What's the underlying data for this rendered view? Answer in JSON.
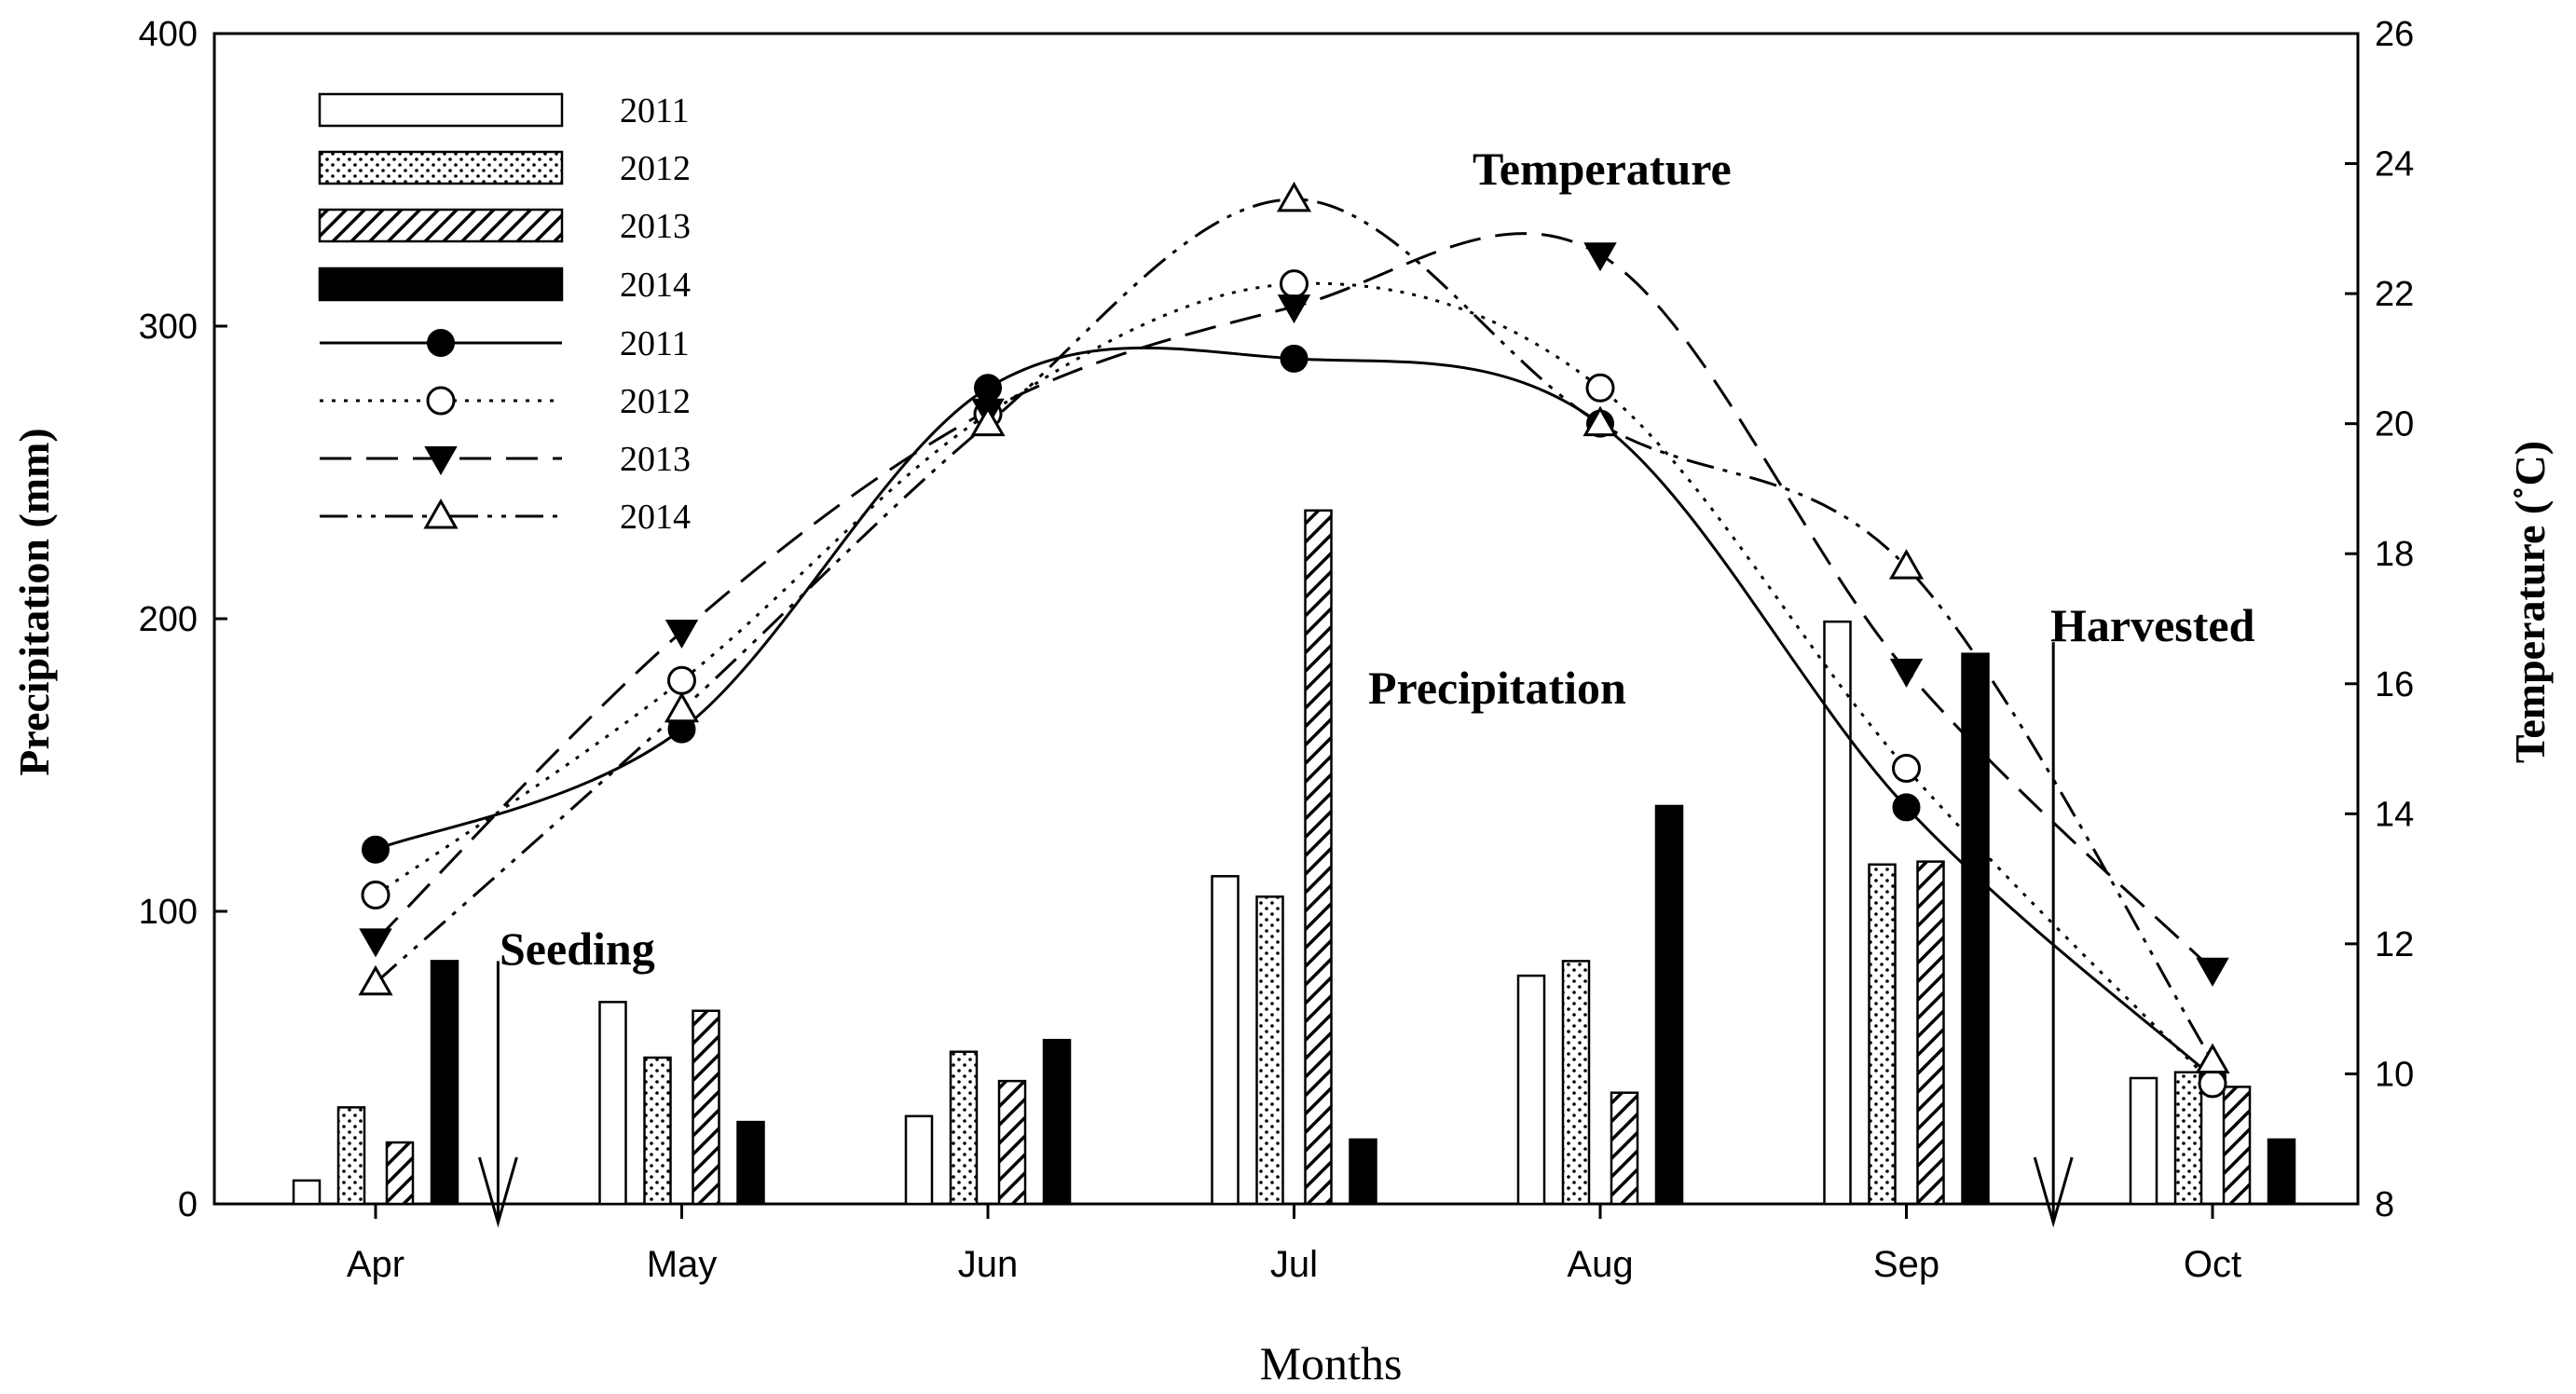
{
  "chart_data": {
    "type": "bar+line",
    "title": "",
    "xlabel": "Months",
    "ylabel": "Precipitation (mm)",
    "y2label": "Temperature (˚C)",
    "categories": [
      "Apr",
      "May",
      "Jun",
      "Jul",
      "Aug",
      "Sep",
      "Oct"
    ],
    "ylim": [
      0,
      400
    ],
    "yticks": [
      0,
      100,
      200,
      300,
      400
    ],
    "y2lim": [
      8,
      26
    ],
    "y2ticks": [
      8,
      10,
      12,
      14,
      16,
      18,
      20,
      22,
      24,
      26
    ],
    "precipitation_series": [
      {
        "name": "2011",
        "pattern": "open",
        "values": [
          8,
          69,
          30,
          112,
          78,
          199,
          43
        ]
      },
      {
        "name": "2012",
        "pattern": "dotted",
        "values": [
          33,
          50,
          52,
          105,
          83,
          116,
          45
        ]
      },
      {
        "name": "2013",
        "pattern": "hatched",
        "values": [
          21,
          66,
          42,
          237,
          38,
          117,
          40
        ]
      },
      {
        "name": "2014",
        "pattern": "solid",
        "values": [
          83,
          28,
          56,
          22,
          136,
          188,
          22
        ]
      }
    ],
    "temperature_series": [
      {
        "name": "2011",
        "line": "solid",
        "marker": "filled-circle",
        "values": [
          13.45,
          15.3,
          20.55,
          21.0,
          20.0,
          14.1,
          9.95
        ]
      },
      {
        "name": "2012",
        "line": "dotted",
        "marker": "open-circle",
        "values": [
          12.75,
          16.05,
          20.15,
          22.15,
          20.55,
          14.7,
          9.85
        ]
      },
      {
        "name": "2013",
        "line": "dashed",
        "marker": "filled-triangle-down",
        "values": [
          12.05,
          16.8,
          20.2,
          21.8,
          22.6,
          16.2,
          11.6
        ]
      },
      {
        "name": "2014",
        "line": "dash-dot-dot",
        "marker": "open-triangle-up",
        "values": [
          11.4,
          15.6,
          20.0,
          23.45,
          20.0,
          17.8,
          10.2
        ]
      }
    ],
    "annotations": {
      "temperature": "Temperature",
      "precipitation": "Precipitation",
      "seeding": "Seeding",
      "harvested": "Harvested"
    },
    "event_arrows": {
      "seeding_month_pos": 0.4,
      "harvested_month_pos": 5.48
    },
    "legend_position": "top-left"
  }
}
